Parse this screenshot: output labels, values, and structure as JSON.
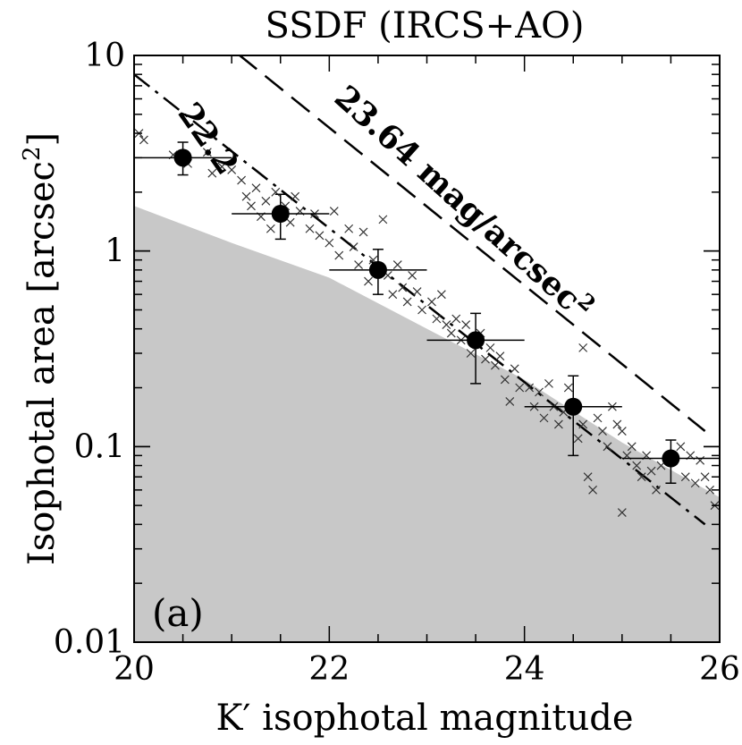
{
  "chart_data": {
    "type": "scatter",
    "title": "SSDF (IRCS+AO)",
    "xlabel": "K′ isophotal magnitude",
    "ylabel": "Isophotal area [arcsec",
    "ylabel_superscript": "2",
    "ylabel_close": "]",
    "panel_label": "(a)",
    "xlim": [
      20,
      26
    ],
    "ylim": [
      0.01,
      10
    ],
    "yscale": "log",
    "x_ticks": [
      20,
      22,
      24,
      26
    ],
    "x_tick_labels": [
      "20",
      "22",
      "24",
      "26"
    ],
    "y_ticks": [
      0.01,
      0.1,
      1,
      10
    ],
    "y_tick_labels": [
      "0.01",
      "0.1",
      "1",
      "10"
    ],
    "shaded_region": {
      "description": "detection limit",
      "color": "#c8c8c8",
      "upper_boundary": [
        [
          20,
          1.7
        ],
        [
          21,
          1.1
        ],
        [
          22,
          0.73
        ],
        [
          23,
          0.4
        ],
        [
          24,
          0.22
        ],
        [
          25,
          0.105
        ],
        [
          26,
          0.055
        ]
      ]
    },
    "lines": [
      {
        "name": "22.2",
        "style": "dash-dot",
        "label": "22.2",
        "points": [
          [
            20,
            8.0
          ],
          [
            25.85,
            0.04
          ]
        ]
      },
      {
        "name": "23.64 mag/arcsec",
        "style": "dashed",
        "label": "23.64 mag/arcsec",
        "label_superscript": "2",
        "points": [
          [
            20.8,
            13.0
          ],
          [
            25.85,
            0.12
          ]
        ]
      }
    ],
    "binned_points": [
      {
        "x": 20.5,
        "y": 3.0,
        "xerr": 0.5,
        "y_low": 2.45,
        "y_high": 3.6
      },
      {
        "x": 21.5,
        "y": 1.55,
        "xerr": 0.5,
        "y_low": 1.15,
        "y_high": 1.95
      },
      {
        "x": 22.5,
        "y": 0.8,
        "xerr": 0.5,
        "y_low": 0.6,
        "y_high": 1.02
      },
      {
        "x": 23.5,
        "y": 0.35,
        "xerr": 0.5,
        "y_low": 0.21,
        "y_high": 0.48
      },
      {
        "x": 24.5,
        "y": 0.16,
        "xerr": 0.5,
        "y_low": 0.09,
        "y_high": 0.23
      },
      {
        "x": 25.5,
        "y": 0.087,
        "xerr": 0.5,
        "y_low": 0.065,
        "y_high": 0.108
      }
    ],
    "scatter_points": [
      [
        20.05,
        4.0
      ],
      [
        20.1,
        3.7
      ],
      [
        20.4,
        3.1
      ],
      [
        20.55,
        2.8
      ],
      [
        20.75,
        3.2
      ],
      [
        20.8,
        2.5
      ],
      [
        20.9,
        2.7
      ],
      [
        21.0,
        2.6
      ],
      [
        21.1,
        2.3
      ],
      [
        21.15,
        1.9
      ],
      [
        21.2,
        1.7
      ],
      [
        21.25,
        2.1
      ],
      [
        21.3,
        1.5
      ],
      [
        21.35,
        1.8
      ],
      [
        21.4,
        1.3
      ],
      [
        21.45,
        2.0
      ],
      [
        21.55,
        1.7
      ],
      [
        21.6,
        1.4
      ],
      [
        21.65,
        1.9
      ],
      [
        21.7,
        1.6
      ],
      [
        21.8,
        1.3
      ],
      [
        21.85,
        1.55
      ],
      [
        21.9,
        1.2
      ],
      [
        22.0,
        1.1
      ],
      [
        22.05,
        1.6
      ],
      [
        22.1,
        0.95
      ],
      [
        22.2,
        1.3
      ],
      [
        22.25,
        1.05
      ],
      [
        22.3,
        0.85
      ],
      [
        22.35,
        1.25
      ],
      [
        22.4,
        0.7
      ],
      [
        22.45,
        0.9
      ],
      [
        22.55,
        1.45
      ],
      [
        22.6,
        0.75
      ],
      [
        22.65,
        0.6
      ],
      [
        22.7,
        0.85
      ],
      [
        22.75,
        0.65
      ],
      [
        22.8,
        0.55
      ],
      [
        22.85,
        0.75
      ],
      [
        22.9,
        0.62
      ],
      [
        22.95,
        0.5
      ],
      [
        23.05,
        0.55
      ],
      [
        23.1,
        0.45
      ],
      [
        23.15,
        0.6
      ],
      [
        23.2,
        0.42
      ],
      [
        23.25,
        0.38
      ],
      [
        23.3,
        0.45
      ],
      [
        23.35,
        0.35
      ],
      [
        23.4,
        0.42
      ],
      [
        23.45,
        0.3
      ],
      [
        23.55,
        0.38
      ],
      [
        23.6,
        0.28
      ],
      [
        23.65,
        0.32
      ],
      [
        23.7,
        0.26
      ],
      [
        23.75,
        0.29
      ],
      [
        23.8,
        0.22
      ],
      [
        23.85,
        0.17
      ],
      [
        23.9,
        0.25
      ],
      [
        23.95,
        0.2
      ],
      [
        24.05,
        0.2
      ],
      [
        24.1,
        0.16
      ],
      [
        24.15,
        0.19
      ],
      [
        24.2,
        0.14
      ],
      [
        24.25,
        0.21
      ],
      [
        24.3,
        0.16
      ],
      [
        24.35,
        0.13
      ],
      [
        24.4,
        0.15
      ],
      [
        24.55,
        0.11
      ],
      [
        24.6,
        0.13
      ],
      [
        24.65,
        0.07
      ],
      [
        24.7,
        0.06
      ],
      [
        24.75,
        0.14
      ],
      [
        24.8,
        0.12
      ],
      [
        24.85,
        0.1
      ],
      [
        24.9,
        0.16
      ],
      [
        24.95,
        0.13
      ],
      [
        25.0,
        0.12
      ],
      [
        25.05,
        0.09
      ],
      [
        25.1,
        0.1
      ],
      [
        25.15,
        0.08
      ],
      [
        25.2,
        0.07
      ],
      [
        25.25,
        0.09
      ],
      [
        25.3,
        0.075
      ],
      [
        25.35,
        0.06
      ],
      [
        25.4,
        0.08
      ],
      [
        25.6,
        0.1
      ],
      [
        25.65,
        0.07
      ],
      [
        25.7,
        0.09
      ],
      [
        25.75,
        0.065
      ],
      [
        25.8,
        0.085
      ],
      [
        25.85,
        0.07
      ],
      [
        25.9,
        0.06
      ],
      [
        25.95,
        0.05
      ],
      [
        24.6,
        0.32
      ],
      [
        24.45,
        0.2
      ],
      [
        25.0,
        0.046
      ]
    ]
  }
}
